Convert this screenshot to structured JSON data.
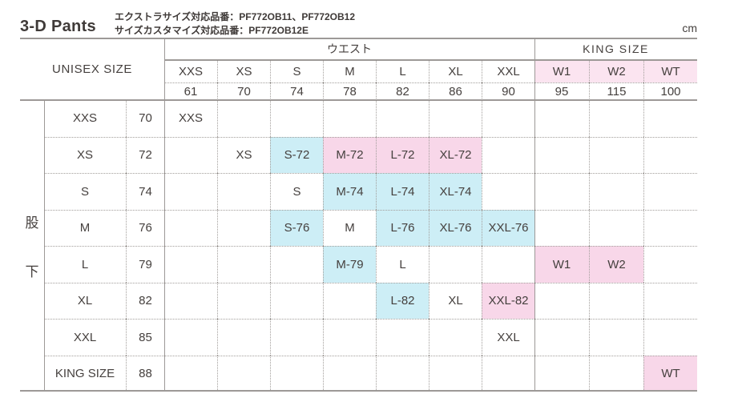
{
  "title": "3-D Pants",
  "notes": {
    "line1": "エクストラサイズ対応品番：PF772OB11、PF772OB12",
    "line2": "サイズカスタマイズ対応品番：PF772OB12E"
  },
  "unit": "cm",
  "colors": {
    "cyan": "#cdeef6",
    "pink": "#f8d7e9",
    "header_pink": "#fbe4f0",
    "line": "#9d9997"
  },
  "table": {
    "unisex_header": "UNISEX SIZE",
    "group_headers": {
      "waist": "ウエスト",
      "king": "KING SIZE"
    },
    "inseam_label": {
      "char1": "股",
      "char2": "下"
    },
    "size_columns": [
      {
        "label": "XXS",
        "value": "61",
        "tone": ""
      },
      {
        "label": "XS",
        "value": "70",
        "tone": ""
      },
      {
        "label": "S",
        "value": "74",
        "tone": ""
      },
      {
        "label": "M",
        "value": "78",
        "tone": ""
      },
      {
        "label": "L",
        "value": "82",
        "tone": ""
      },
      {
        "label": "XL",
        "value": "86",
        "tone": ""
      },
      {
        "label": "XXL",
        "value": "90",
        "tone": ""
      },
      {
        "label": "W1",
        "value": "95",
        "tone": "hpink"
      },
      {
        "label": "W2",
        "value": "115",
        "tone": "hpink"
      },
      {
        "label": "WT",
        "value": "100",
        "tone": "hpink"
      }
    ],
    "rows": [
      {
        "size": "XXS",
        "inseam": "70",
        "cells": [
          {
            "text": "XXS",
            "tone": ""
          },
          {
            "text": "",
            "tone": ""
          },
          {
            "text": "",
            "tone": ""
          },
          {
            "text": "",
            "tone": ""
          },
          {
            "text": "",
            "tone": ""
          },
          {
            "text": "",
            "tone": ""
          },
          {
            "text": "",
            "tone": ""
          },
          {
            "text": "",
            "tone": ""
          },
          {
            "text": "",
            "tone": ""
          },
          {
            "text": "",
            "tone": ""
          }
        ]
      },
      {
        "size": "XS",
        "inseam": "72",
        "cells": [
          {
            "text": "",
            "tone": ""
          },
          {
            "text": "XS",
            "tone": ""
          },
          {
            "text": "S-72",
            "tone": "cyan"
          },
          {
            "text": "M-72",
            "tone": "pink"
          },
          {
            "text": "L-72",
            "tone": "pink"
          },
          {
            "text": "XL-72",
            "tone": "pink"
          },
          {
            "text": "",
            "tone": ""
          },
          {
            "text": "",
            "tone": ""
          },
          {
            "text": "",
            "tone": ""
          },
          {
            "text": "",
            "tone": ""
          }
        ]
      },
      {
        "size": "S",
        "inseam": "74",
        "cells": [
          {
            "text": "",
            "tone": ""
          },
          {
            "text": "",
            "tone": ""
          },
          {
            "text": "S",
            "tone": ""
          },
          {
            "text": "M-74",
            "tone": "cyan"
          },
          {
            "text": "L-74",
            "tone": "cyan"
          },
          {
            "text": "XL-74",
            "tone": "cyan"
          },
          {
            "text": "",
            "tone": ""
          },
          {
            "text": "",
            "tone": ""
          },
          {
            "text": "",
            "tone": ""
          },
          {
            "text": "",
            "tone": ""
          }
        ]
      },
      {
        "size": "M",
        "inseam": "76",
        "cells": [
          {
            "text": "",
            "tone": ""
          },
          {
            "text": "",
            "tone": ""
          },
          {
            "text": "S-76",
            "tone": "cyan"
          },
          {
            "text": "M",
            "tone": ""
          },
          {
            "text": "L-76",
            "tone": "cyan"
          },
          {
            "text": "XL-76",
            "tone": "cyan"
          },
          {
            "text": "XXL-76",
            "tone": "cyan"
          },
          {
            "text": "",
            "tone": ""
          },
          {
            "text": "",
            "tone": ""
          },
          {
            "text": "",
            "tone": ""
          }
        ]
      },
      {
        "size": "L",
        "inseam": "79",
        "cells": [
          {
            "text": "",
            "tone": ""
          },
          {
            "text": "",
            "tone": ""
          },
          {
            "text": "",
            "tone": ""
          },
          {
            "text": "M-79",
            "tone": "cyan"
          },
          {
            "text": "L",
            "tone": ""
          },
          {
            "text": "",
            "tone": ""
          },
          {
            "text": "",
            "tone": ""
          },
          {
            "text": "W1",
            "tone": "pink"
          },
          {
            "text": "W2",
            "tone": "pink"
          },
          {
            "text": "",
            "tone": ""
          }
        ]
      },
      {
        "size": "XL",
        "inseam": "82",
        "cells": [
          {
            "text": "",
            "tone": ""
          },
          {
            "text": "",
            "tone": ""
          },
          {
            "text": "",
            "tone": ""
          },
          {
            "text": "",
            "tone": ""
          },
          {
            "text": "L-82",
            "tone": "cyan"
          },
          {
            "text": "XL",
            "tone": ""
          },
          {
            "text": "XXL-82",
            "tone": "pink"
          },
          {
            "text": "",
            "tone": ""
          },
          {
            "text": "",
            "tone": ""
          },
          {
            "text": "",
            "tone": ""
          }
        ]
      },
      {
        "size": "XXL",
        "inseam": "85",
        "cells": [
          {
            "text": "",
            "tone": ""
          },
          {
            "text": "",
            "tone": ""
          },
          {
            "text": "",
            "tone": ""
          },
          {
            "text": "",
            "tone": ""
          },
          {
            "text": "",
            "tone": ""
          },
          {
            "text": "",
            "tone": ""
          },
          {
            "text": "XXL",
            "tone": ""
          },
          {
            "text": "",
            "tone": ""
          },
          {
            "text": "",
            "tone": ""
          },
          {
            "text": "",
            "tone": ""
          }
        ]
      },
      {
        "size": "KING SIZE",
        "inseam": "88",
        "cells": [
          {
            "text": "",
            "tone": ""
          },
          {
            "text": "",
            "tone": ""
          },
          {
            "text": "",
            "tone": ""
          },
          {
            "text": "",
            "tone": ""
          },
          {
            "text": "",
            "tone": ""
          },
          {
            "text": "",
            "tone": ""
          },
          {
            "text": "",
            "tone": ""
          },
          {
            "text": "",
            "tone": ""
          },
          {
            "text": "",
            "tone": ""
          },
          {
            "text": "WT",
            "tone": "pink"
          }
        ]
      }
    ]
  }
}
